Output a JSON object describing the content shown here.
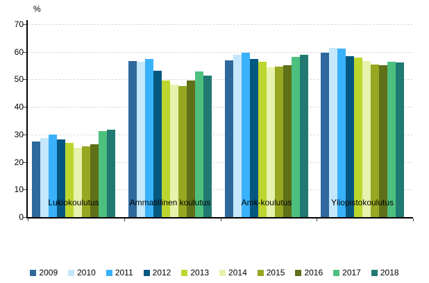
{
  "chart_data": {
    "type": "bar",
    "title": "",
    "xlabel": "",
    "ylabel": "%",
    "ylim": [
      0,
      70
    ],
    "ytick_step": 10,
    "grid": "horizontal-dashed",
    "gridline_color": "#d9d9d9",
    "legend_position": "bottom",
    "categories": [
      "Lukiokoulutus",
      "Ammatillinen koulutus",
      "Amk-koulutus",
      "Yliopistokoulutus"
    ],
    "series": [
      {
        "name": "2009",
        "color": "#2f689c",
        "values": [
          27.5,
          56.7,
          57.0,
          59.7
        ]
      },
      {
        "name": "2010",
        "color": "#c4e7fb",
        "values": [
          28.8,
          56.3,
          59.0,
          61.4
        ]
      },
      {
        "name": "2011",
        "color": "#3ab1fb",
        "values": [
          30.0,
          57.5,
          59.6,
          61.2
        ]
      },
      {
        "name": "2012",
        "color": "#045880",
        "values": [
          28.2,
          53.1,
          57.5,
          58.5
        ]
      },
      {
        "name": "2013",
        "color": "#bdd62f",
        "values": [
          27.0,
          49.5,
          56.4,
          57.8
        ]
      },
      {
        "name": "2014",
        "color": "#e7f2ae",
        "values": [
          25.2,
          48.2,
          54.4,
          56.6
        ]
      },
      {
        "name": "2015",
        "color": "#97a722",
        "values": [
          25.8,
          47.5,
          54.6,
          55.3
        ]
      },
      {
        "name": "2016",
        "color": "#5f7019",
        "values": [
          26.5,
          49.6,
          55.2,
          55.2
        ]
      },
      {
        "name": "2017",
        "color": "#4dc07f",
        "values": [
          31.3,
          53.0,
          58.2,
          56.3
        ]
      },
      {
        "name": "2018",
        "color": "#217a72",
        "values": [
          31.8,
          51.4,
          58.9,
          56.2
        ]
      }
    ]
  }
}
